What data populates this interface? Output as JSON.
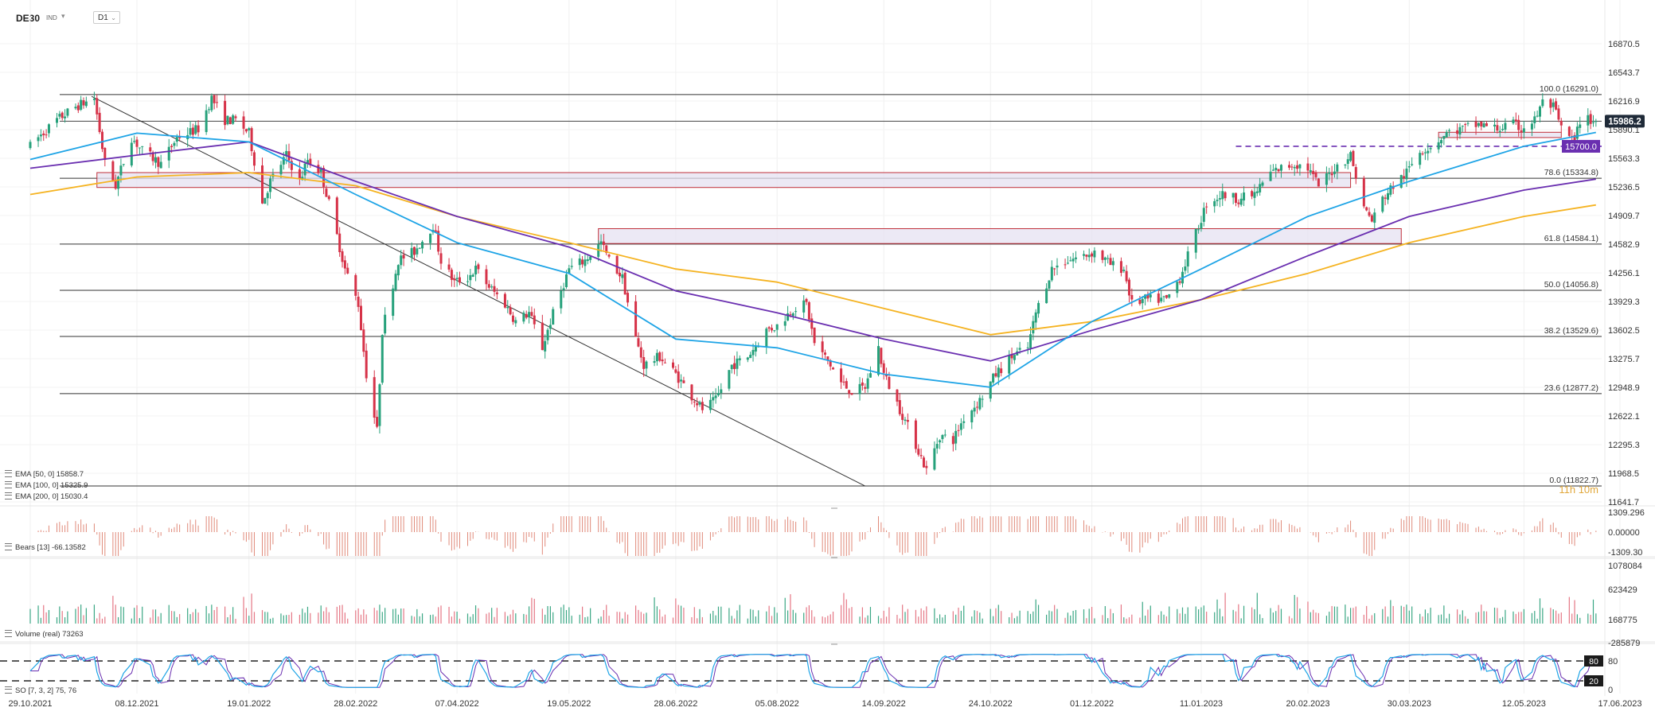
{
  "toolbar": {
    "symbol": "DE30",
    "symbol_type": "IND",
    "timeframe": "D1",
    "symbol_caret_icon": "chevron-down-icon",
    "timeframe_caret_icon": "chevron-down-icon"
  },
  "legends": {
    "ema50": "EMA [50, 0] 15858.7",
    "ema100": "EMA [100, 0] 15325.9",
    "ema200": "EMA [200, 0] 15030.4",
    "bears": "Bears [13] -66.13582",
    "volume": "Volume (real) 73263",
    "stoch": "SO [7, 3, 2] 75, 76",
    "legend_icon": "indicator-settings-icon"
  },
  "colors": {
    "bull": "#26a17b",
    "bear": "#d63248",
    "ema50": "#1ea4e6",
    "ema100": "#6a2fb0",
    "ema200": "#f5b321",
    "fib": "#333333",
    "zone_fill": "#e6e2f2",
    "zone_border": "#c0303a",
    "level_badge": "#6a2fb0",
    "price_badge": "#1f2a38",
    "stoch_k": "#1ea4e6",
    "stoch_d": "#6a2fb0",
    "countdown": "#e1a83c"
  },
  "chart_data": {
    "type": "candlestick",
    "symbol": "DE30",
    "timeframe": "D1",
    "y_range": [
      11641.7,
      16870.5
    ],
    "price_ticks": [
      "16870.5",
      "16543.7",
      "16216.9",
      "15890.1",
      "15563.3",
      "15236.5",
      "14909.7",
      "14582.9",
      "14256.1",
      "13929.3",
      "13602.5",
      "13275.7",
      "12948.9",
      "12622.1",
      "12295.3",
      "11968.5",
      "11641.7"
    ],
    "price_tick_values": [
      16870.5,
      16543.7,
      16216.9,
      15890.1,
      15563.3,
      15236.5,
      14909.7,
      14582.9,
      14256.1,
      13929.3,
      13602.5,
      13275.7,
      12948.9,
      12622.1,
      12295.3,
      11968.5,
      11641.7
    ],
    "date_ticks": [
      "29.10.2021",
      "08.12.2021",
      "19.01.2022",
      "28.02.2022",
      "07.04.2022",
      "19.05.2022",
      "28.06.2022",
      "05.08.2022",
      "14.09.2022",
      "24.10.2022",
      "01.12.2022",
      "11.01.2023",
      "20.02.2023",
      "30.03.2023",
      "12.05.2023",
      "17.06.2023"
    ],
    "current_price": 15986.2,
    "current_price_label": "15986.2",
    "highlighted_level": 15700.0,
    "highlighted_level_label": "15700.0",
    "countdown_label": "11h 10m",
    "fibonacci": [
      {
        "label": "100.0 (16291.0)",
        "value": 16291.0
      },
      {
        "label": "78.6 (15334.8)",
        "value": 15334.8
      },
      {
        "label": "61.8 (14584.1)",
        "value": 14584.1
      },
      {
        "label": "50.0 (14056.8)",
        "value": 14056.8
      },
      {
        "label": "38.2 (13529.6)",
        "value": 13529.6
      },
      {
        "label": "23.6 (12877.2)",
        "value": 12877.2
      },
      {
        "label": "0.0 (11822.7)",
        "value": 11822.7
      }
    ],
    "horizontal_lines": [
      15986.2
    ],
    "price_path": [
      [
        "29.10.2021",
        15700
      ],
      [
        "01.11.2021",
        15800
      ],
      [
        "08.11.2021",
        16000
      ],
      [
        "15.11.2021",
        16150
      ],
      [
        "22.11.2021",
        16250
      ],
      [
        "26.11.2021",
        15500
      ],
      [
        "30.11.2021",
        15250
      ],
      [
        "06.12.2021",
        15800
      ],
      [
        "10.12.2021",
        15650
      ],
      [
        "17.12.2021",
        15500
      ],
      [
        "23.12.2021",
        15800
      ],
      [
        "31.12.2021",
        15900
      ],
      [
        "05.01.2022",
        16250
      ],
      [
        "10.01.2022",
        16000
      ],
      [
        "14.01.2022",
        16000
      ],
      [
        "19.01.2022",
        15850
      ],
      [
        "24.01.2022",
        15050
      ],
      [
        "27.01.2022",
        15300
      ],
      [
        "02.02.2022",
        15600
      ],
      [
        "07.02.2022",
        15300
      ],
      [
        "10.02.2022",
        15550
      ],
      [
        "15.02.2022",
        15400
      ],
      [
        "18.02.2022",
        15050
      ],
      [
        "24.02.2022",
        14300
      ],
      [
        "01.03.2022",
        13900
      ],
      [
        "04.03.2022",
        13100
      ],
      [
        "08.03.2022",
        12450
      ],
      [
        "10.03.2022",
        13600
      ],
      [
        "16.03.2022",
        14400
      ],
      [
        "22.03.2022",
        14500
      ],
      [
        "29.03.2022",
        14800
      ],
      [
        "01.04.2022",
        14400
      ],
      [
        "06.04.2022",
        14150
      ],
      [
        "11.04.2022",
        14200
      ],
      [
        "14.04.2022",
        14300
      ],
      [
        "19.04.2022",
        14100
      ],
      [
        "25.04.2022",
        13900
      ],
      [
        "29.04.2022",
        13700
      ],
      [
        "04.05.2022",
        13800
      ],
      [
        "09.05.2022",
        13400
      ],
      [
        "12.05.2022",
        13700
      ],
      [
        "16.05.2022",
        14050
      ],
      [
        "19.05.2022",
        14300
      ],
      [
        "25.05.2022",
        14400
      ],
      [
        "31.05.2022",
        14600
      ],
      [
        "03.06.2022",
        14400
      ],
      [
        "08.06.2022",
        14200
      ],
      [
        "13.06.2022",
        13500
      ],
      [
        "16.06.2022",
        13200
      ],
      [
        "22.06.2022",
        13300
      ],
      [
        "28.06.2022",
        13100
      ],
      [
        "04.07.2022",
        12850
      ],
      [
        "08.07.2022",
        12700
      ],
      [
        "13.07.2022",
        12800
      ],
      [
        "19.07.2022",
        13200
      ],
      [
        "25.07.2022",
        13300
      ],
      [
        "01.08.2022",
        13600
      ],
      [
        "05.08.2022",
        13650
      ],
      [
        "11.08.2022",
        13850
      ],
      [
        "16.08.2022",
        13900
      ],
      [
        "19.08.2022",
        13450
      ],
      [
        "24.08.2022",
        13250
      ],
      [
        "29.08.2022",
        13000
      ],
      [
        "02.09.2022",
        12900
      ],
      [
        "07.09.2022",
        12950
      ],
      [
        "12.09.2022",
        13400
      ],
      [
        "14.09.2022",
        13100
      ],
      [
        "20.09.2022",
        12700
      ],
      [
        "26.09.2022",
        12300
      ],
      [
        "30.09.2022",
        12000
      ],
      [
        "05.10.2022",
        12400
      ],
      [
        "10.10.2022",
        12350
      ],
      [
        "14.10.2022",
        12600
      ],
      [
        "20.10.2022",
        12800
      ],
      [
        "26.10.2022",
        13100
      ],
      [
        "01.11.2022",
        13300
      ],
      [
        "07.11.2022",
        13400
      ],
      [
        "10.11.2022",
        13800
      ],
      [
        "16.11.2022",
        14300
      ],
      [
        "22.11.2022",
        14400
      ],
      [
        "28.11.2022",
        14450
      ],
      [
        "02.12.2022",
        14500
      ],
      [
        "08.12.2022",
        14350
      ],
      [
        "13.12.2022",
        14300
      ],
      [
        "16.12.2022",
        13900
      ],
      [
        "21.12.2022",
        13950
      ],
      [
        "29.12.2022",
        13950
      ],
      [
        "03.01.2023",
        14200
      ],
      [
        "09.01.2023",
        14700
      ],
      [
        "13.01.2023",
        15050
      ],
      [
        "19.01.2023",
        15150
      ],
      [
        "25.01.2023",
        15100
      ],
      [
        "31.01.2023",
        15150
      ],
      [
        "06.02.2023",
        15400
      ],
      [
        "10.02.2023",
        15450
      ],
      [
        "15.02.2023",
        15500
      ],
      [
        "20.02.2023",
        15450
      ],
      [
        "24.02.2023",
        15250
      ],
      [
        "02.03.2023",
        15450
      ],
      [
        "08.03.2023",
        15600
      ],
      [
        "13.03.2023",
        15000
      ],
      [
        "16.03.2023",
        14850
      ],
      [
        "20.03.2023",
        15100
      ],
      [
        "24.03.2023",
        15250
      ],
      [
        "29.03.2023",
        15400
      ],
      [
        "03.04.2023",
        15650
      ],
      [
        "07.04.2023",
        15700
      ],
      [
        "13.04.2023",
        15850
      ],
      [
        "19.04.2023",
        15900
      ],
      [
        "25.04.2023",
        15950
      ],
      [
        "02.05.2023",
        15900
      ],
      [
        "08.05.2023",
        15950
      ],
      [
        "11.05.2023",
        15900
      ],
      [
        "16.05.2023",
        16000
      ],
      [
        "19.05.2023",
        16200
      ],
      [
        "23.05.2023",
        16150
      ],
      [
        "26.05.2023",
        15900
      ],
      [
        "31.05.2023",
        15750
      ],
      [
        "02.06.2023",
        16000
      ],
      [
        "06.06.2023",
        16000
      ],
      [
        "08.06.2023",
        15986
      ]
    ],
    "ema50_path": [
      [
        "29.10.2021",
        15550
      ],
      [
        "08.12.2021",
        15850
      ],
      [
        "19.01.2022",
        15750
      ],
      [
        "28.02.2022",
        15150
      ],
      [
        "07.04.2022",
        14600
      ],
      [
        "19.05.2022",
        14250
      ],
      [
        "28.06.2022",
        13500
      ],
      [
        "05.08.2022",
        13400
      ],
      [
        "14.09.2022",
        13100
      ],
      [
        "24.10.2022",
        12950
      ],
      [
        "01.12.2022",
        13700
      ],
      [
        "11.01.2023",
        14300
      ],
      [
        "20.02.2023",
        14900
      ],
      [
        "30.03.2023",
        15300
      ],
      [
        "12.05.2023",
        15700
      ],
      [
        "08.06.2023",
        15858.7
      ]
    ],
    "ema100_path": [
      [
        "29.10.2021",
        15450
      ],
      [
        "08.12.2021",
        15600
      ],
      [
        "19.01.2022",
        15750
      ],
      [
        "28.02.2022",
        15300
      ],
      [
        "07.04.2022",
        14900
      ],
      [
        "19.05.2022",
        14550
      ],
      [
        "28.06.2022",
        14050
      ],
      [
        "05.08.2022",
        13800
      ],
      [
        "14.09.2022",
        13500
      ],
      [
        "24.10.2022",
        13250
      ],
      [
        "01.12.2022",
        13600
      ],
      [
        "11.01.2023",
        13950
      ],
      [
        "20.02.2023",
        14450
      ],
      [
        "30.03.2023",
        14900
      ],
      [
        "12.05.2023",
        15200
      ],
      [
        "08.06.2023",
        15325.9
      ]
    ],
    "ema200_path": [
      [
        "29.10.2021",
        15150
      ],
      [
        "08.12.2021",
        15350
      ],
      [
        "19.01.2022",
        15400
      ],
      [
        "28.02.2022",
        15250
      ],
      [
        "07.04.2022",
        14900
      ],
      [
        "19.05.2022",
        14600
      ],
      [
        "28.06.2022",
        14300
      ],
      [
        "05.08.2022",
        14150
      ],
      [
        "14.09.2022",
        13850
      ],
      [
        "24.10.2022",
        13550
      ],
      [
        "01.12.2022",
        13700
      ],
      [
        "11.01.2023",
        13950
      ],
      [
        "20.02.2023",
        14250
      ],
      [
        "30.03.2023",
        14600
      ],
      [
        "12.05.2023",
        14900
      ],
      [
        "08.06.2023",
        15030.4
      ]
    ],
    "trendline": [
      [
        "21.11.2021",
        16270
      ],
      [
        "07.09.2022",
        11822.7
      ]
    ],
    "zones": [
      {
        "from_date": "23.11.2021",
        "to_date": "08.03.2023",
        "low": 15230,
        "high": 15400
      },
      {
        "from_date": "30.05.2022",
        "to_date": "27.03.2023",
        "low": 14590,
        "high": 14760
      },
      {
        "from_date": "10.04.2023",
        "to_date": "26.05.2023",
        "low": 15800,
        "high": 15860
      }
    ],
    "bears_panel": {
      "label": "Bears [13]",
      "value": -66.13582,
      "y_ticks": [
        "1309.296",
        "0.00000",
        "-1309.30"
      ]
    },
    "volume_panel": {
      "label": "Volume (real)",
      "value": 73263,
      "y_ticks": [
        "1078084",
        "623429",
        "168775",
        "-285879"
      ]
    },
    "stoch_panel": {
      "label": "SO [7, 3, 2]",
      "k": 75,
      "d": 76,
      "levels": [
        80,
        20
      ],
      "level_labels": [
        "80",
        "20"
      ],
      "y_ticks": [
        "80",
        "0"
      ]
    }
  }
}
